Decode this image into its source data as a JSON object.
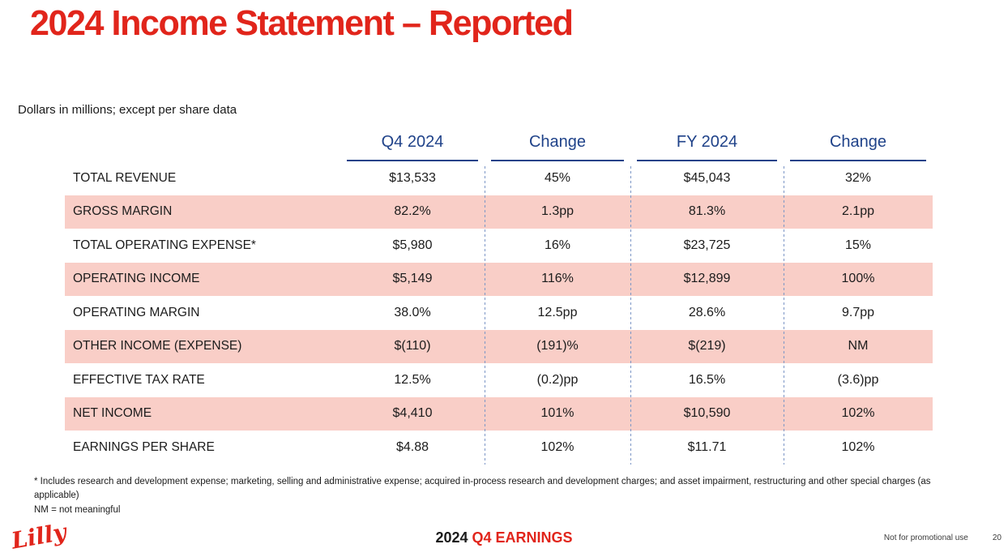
{
  "slide": {
    "title": "2024 Income Statement – Reported",
    "subtitle": "Dollars in millions; except per share data"
  },
  "table": {
    "columns": [
      "Q4 2024",
      "Change",
      "FY 2024",
      "Change"
    ],
    "rows": [
      {
        "label": "TOTAL REVENUE",
        "q4": "$13,533",
        "q4_change": "45%",
        "fy": "$45,043",
        "fy_change": "32%",
        "highlight": false
      },
      {
        "label": "GROSS MARGIN",
        "q4": "82.2%",
        "q4_change": "1.3pp",
        "fy": "81.3%",
        "fy_change": "2.1pp",
        "highlight": true
      },
      {
        "label": "TOTAL OPERATING EXPENSE*",
        "q4": "$5,980",
        "q4_change": "16%",
        "fy": "$23,725",
        "fy_change": "15%",
        "highlight": false
      },
      {
        "label": "OPERATING INCOME",
        "q4": "$5,149",
        "q4_change": "116%",
        "fy": "$12,899",
        "fy_change": "100%",
        "highlight": true
      },
      {
        "label": "OPERATING MARGIN",
        "q4": "38.0%",
        "q4_change": "12.5pp",
        "fy": "28.6%",
        "fy_change": "9.7pp",
        "highlight": false
      },
      {
        "label": "OTHER INCOME (EXPENSE)",
        "q4": "$(110)",
        "q4_change": "(191)%",
        "fy": "$(219)",
        "fy_change": "NM",
        "highlight": true
      },
      {
        "label": "EFFECTIVE TAX RATE",
        "q4": "12.5%",
        "q4_change": "(0.2)pp",
        "fy": "16.5%",
        "fy_change": "(3.6)pp",
        "highlight": false
      },
      {
        "label": "NET INCOME",
        "q4": "$4,410",
        "q4_change": "101%",
        "fy": "$10,590",
        "fy_change": "102%",
        "highlight": true
      },
      {
        "label": "EARNINGS PER SHARE",
        "q4": "$4.88",
        "q4_change": "102%",
        "fy": "$11.71",
        "fy_change": "102%",
        "highlight": false
      }
    ]
  },
  "footnotes": {
    "asterisk": "* Includes research and development expense; marketing, selling and administrative expense; acquired in-process research and development charges; and asset impairment, restructuring and other special charges (as applicable)",
    "nm": "NM = not meaningful"
  },
  "footer": {
    "logo_text": "Lilly",
    "event_year": "2024",
    "event_name": "Q4 EARNINGS",
    "disclaimer": "Not for promotional use",
    "page_number": "20"
  },
  "colors": {
    "accent_red": "#E1251B",
    "header_navy": "#1F4289",
    "row_highlight_pink": "#F9CEC7",
    "separator_blue": "#7C96C6"
  }
}
